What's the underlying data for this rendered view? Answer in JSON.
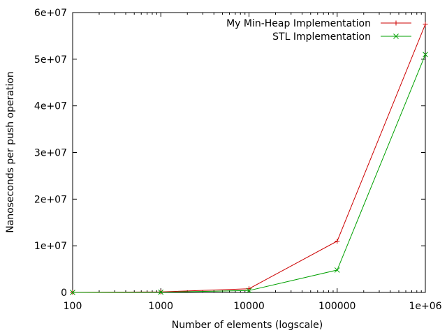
{
  "chart_data": {
    "type": "line",
    "xscale": "log",
    "xlabel": "Number of elements (logscale)",
    "ylabel": "Nanoseconds per push operation",
    "xlim": [
      100,
      1000000
    ],
    "ylim": [
      0,
      60000000
    ],
    "xticks": [
      {
        "value": 100,
        "label": "100"
      },
      {
        "value": 1000,
        "label": "1000"
      },
      {
        "value": 10000,
        "label": "10000"
      },
      {
        "value": 100000,
        "label": "100000"
      },
      {
        "value": 1000000,
        "label": "1e+06"
      }
    ],
    "yticks": [
      {
        "value": 0,
        "label": "0"
      },
      {
        "value": 10000000,
        "label": "1e+07"
      },
      {
        "value": 20000000,
        "label": "2e+07"
      },
      {
        "value": 30000000,
        "label": "3e+07"
      },
      {
        "value": 40000000,
        "label": "4e+07"
      },
      {
        "value": 50000000,
        "label": "5e+07"
      },
      {
        "value": 60000000,
        "label": "6e+07"
      }
    ],
    "grid": false,
    "legend_position": "top-right",
    "series": [
      {
        "name": "My Min-Heap Implementation",
        "color": "#cc0000",
        "marker": "plus",
        "x": [
          100,
          1000,
          10000,
          100000,
          1000000
        ],
        "y": [
          10000,
          100000,
          800000,
          11000000,
          57500000
        ]
      },
      {
        "name": "STL Implementation",
        "color": "#00a000",
        "marker": "cross",
        "x": [
          100,
          1000,
          10000,
          100000,
          1000000
        ],
        "y": [
          5000,
          50000,
          400000,
          4800000,
          51000000
        ]
      }
    ]
  }
}
